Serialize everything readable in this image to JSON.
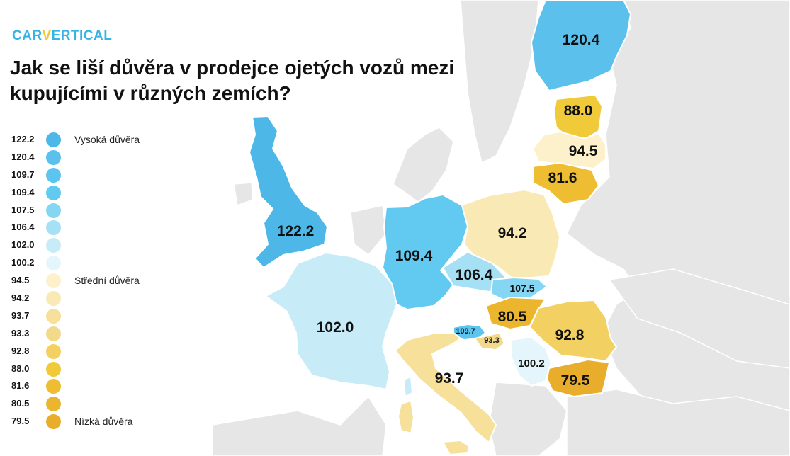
{
  "brand": {
    "prefix": "CAR",
    "accent": "V",
    "suffix": "ERTICAL"
  },
  "title": "Jak se liší důvěra v prodejce ojetých vozů mezi kupujícími v různých zemích?",
  "legend": {
    "items": [
      {
        "value": "122.2",
        "color": "#4db8e8",
        "tier": "Vysoká důvěra"
      },
      {
        "value": "120.4",
        "color": "#5cc0ec",
        "tier": ""
      },
      {
        "value": "109.7",
        "color": "#5bc5ef",
        "tier": ""
      },
      {
        "value": "109.4",
        "color": "#62c9f0",
        "tier": ""
      },
      {
        "value": "107.5",
        "color": "#84d6f3",
        "tier": ""
      },
      {
        "value": "106.4",
        "color": "#a6e0f4",
        "tier": ""
      },
      {
        "value": "102.0",
        "color": "#c7ebf7",
        "tier": ""
      },
      {
        "value": "100.2",
        "color": "#e4f5fb",
        "tier": ""
      },
      {
        "value": "94.5",
        "color": "#fcf1cb",
        "tier": "Střední důvěra"
      },
      {
        "value": "94.2",
        "color": "#f9eab5",
        "tier": ""
      },
      {
        "value": "93.7",
        "color": "#f6e09a",
        "tier": ""
      },
      {
        "value": "93.3",
        "color": "#f3d98a",
        "tier": ""
      },
      {
        "value": "92.8",
        "color": "#f2d061",
        "tier": ""
      },
      {
        "value": "88.0",
        "color": "#f1ca3a",
        "tier": ""
      },
      {
        "value": "81.6",
        "color": "#eebd32",
        "tier": ""
      },
      {
        "value": "80.5",
        "color": "#ecb52e",
        "tier": ""
      },
      {
        "value": "79.5",
        "color": "#e9ad2c",
        "tier": "Nízká důvěra"
      }
    ]
  },
  "map": {
    "background_land_color": "#e6e6e6",
    "countries": [
      {
        "value": "120.4",
        "color": "#5cc0ec"
      },
      {
        "value": "88.0",
        "color": "#f1ca3a"
      },
      {
        "value": "94.5",
        "color": "#fcf1cb"
      },
      {
        "value": "81.6",
        "color": "#eebd32"
      },
      {
        "value": "122.2",
        "color": "#4db8e8"
      },
      {
        "value": "94.2",
        "color": "#f9eab5"
      },
      {
        "value": "109.4",
        "color": "#62c9f0"
      },
      {
        "value": "106.4",
        "color": "#a6e0f4"
      },
      {
        "value": "107.5",
        "color": "#84d6f3"
      },
      {
        "value": "102.0",
        "color": "#c7ebf7"
      },
      {
        "value": "80.5",
        "color": "#ecb52e"
      },
      {
        "value": "92.8",
        "color": "#f2d061"
      },
      {
        "value": "109.7",
        "color": "#5bc5ef"
      },
      {
        "value": "93.3",
        "color": "#f3d98a"
      },
      {
        "value": "100.2",
        "color": "#e4f5fb"
      },
      {
        "value": "79.5",
        "color": "#e9ad2c"
      },
      {
        "value": "93.7",
        "color": "#f6e09a"
      }
    ]
  }
}
